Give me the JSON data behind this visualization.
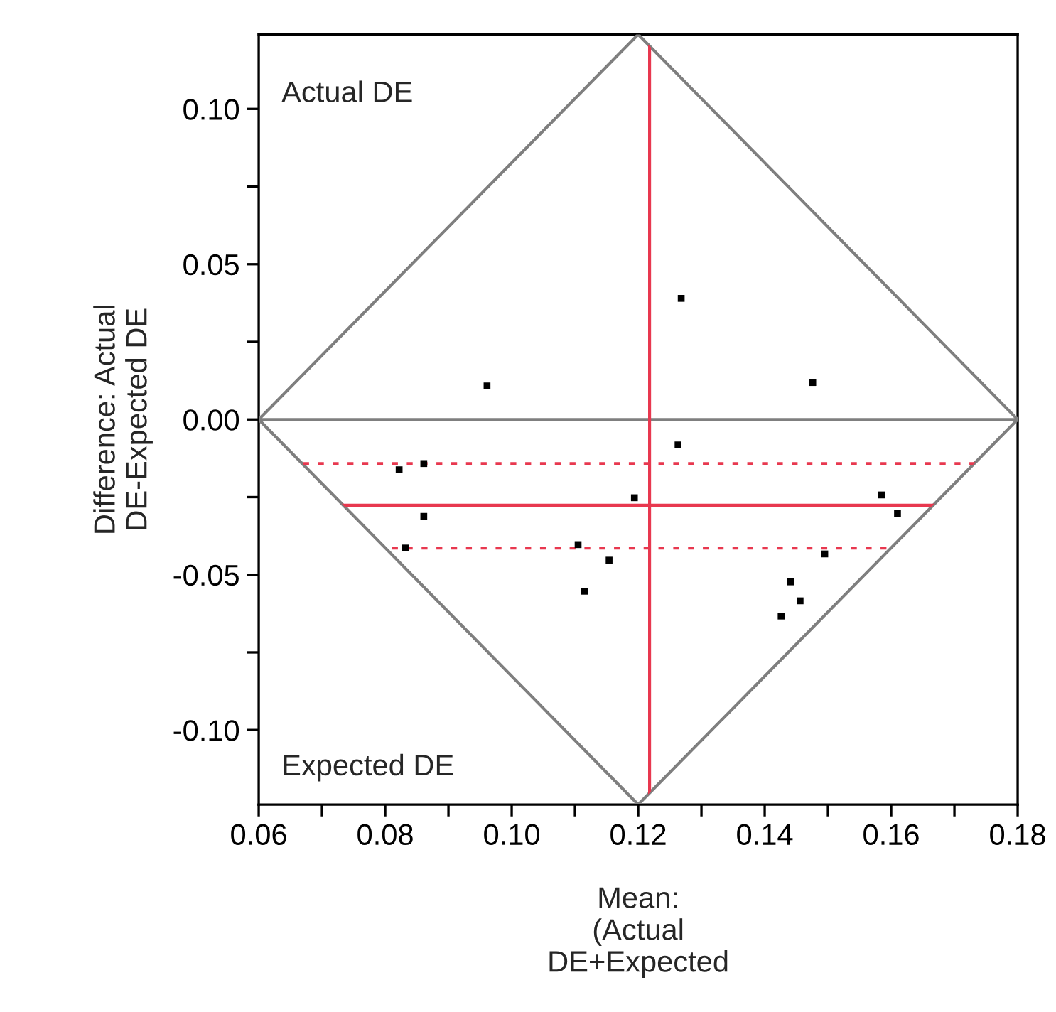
{
  "chart_data": {
    "type": "scatter",
    "xlabel": "Mean:\n(Actual\nDE+Expected",
    "ylabel": "Difference: Actual\nDE-Expected DE",
    "xlim": [
      0.06,
      0.18
    ],
    "ylim": [
      -0.124,
      0.124
    ],
    "xticks": [
      {
        "value": 0.06,
        "label": "0.06"
      },
      {
        "value": 0.07,
        "label": null
      },
      {
        "value": 0.08,
        "label": "0.08"
      },
      {
        "value": 0.09,
        "label": null
      },
      {
        "value": 0.1,
        "label": "0.10"
      },
      {
        "value": 0.11,
        "label": null
      },
      {
        "value": 0.12,
        "label": "0.12"
      },
      {
        "value": 0.13,
        "label": null
      },
      {
        "value": 0.14,
        "label": "0.14"
      },
      {
        "value": 0.15,
        "label": null
      },
      {
        "value": 0.16,
        "label": "0.16"
      },
      {
        "value": 0.17,
        "label": null
      },
      {
        "value": 0.18,
        "label": "0.18"
      }
    ],
    "yticks": [
      {
        "value": -0.1,
        "label": "-0.10"
      },
      {
        "value": -0.075,
        "label": null
      },
      {
        "value": -0.05,
        "label": "-0.05"
      },
      {
        "value": -0.025,
        "label": null
      },
      {
        "value": 0,
        "label": "0.00"
      },
      {
        "value": 0.025,
        "label": null
      },
      {
        "value": 0.05,
        "label": "0.05"
      },
      {
        "value": 0.075,
        "label": null
      },
      {
        "value": 0.1,
        "label": "0.10"
      }
    ],
    "grid": false,
    "legend": false,
    "series": [
      {
        "color": "#000000",
        "marker": "square",
        "x": [
          0.1268,
          0.0961,
          0.1476,
          0.1263,
          0.0822,
          0.0861,
          0.1194,
          0.1585,
          0.161,
          0.0861,
          0.0832,
          0.1105,
          0.1154,
          0.1495,
          0.1115,
          0.1441,
          0.1456,
          0.1426
        ],
        "values": [
          0.039,
          0.0108,
          0.0119,
          -0.0082,
          -0.0162,
          -0.0142,
          -0.0252,
          -0.0243,
          -0.0303,
          -0.0312,
          -0.0414,
          -0.0403,
          -0.0453,
          -0.0433,
          -0.0553,
          -0.0523,
          -0.0584,
          -0.0633
        ]
      },
      {
        "type": "line",
        "color": "#7f7f7f",
        "marker": "none",
        "line_style": "solid",
        "x": [
          0.06,
          0.12,
          0.18
        ],
        "values": [
          0,
          0.124,
          0
        ]
      },
      {
        "type": "line",
        "color": "#7f7f7f",
        "marker": "none",
        "line_style": "solid",
        "x": [
          0.06,
          0.12,
          0.18
        ],
        "values": [
          0,
          -0.124,
          0
        ]
      }
    ],
    "ref_lines": [
      {
        "axis": "y",
        "value": 0,
        "color": "#7f7f7f",
        "line_style": "solid"
      },
      {
        "axis": "x",
        "value": 0.1218,
        "color": "#e8384f",
        "line_style": "solid"
      },
      {
        "axis": "y",
        "value": -0.0276,
        "color": "#e8384f",
        "line_style": "solid"
      },
      {
        "axis": "y",
        "value": -0.0142,
        "color": "#e8384f",
        "line_style": "dotted"
      },
      {
        "axis": "y",
        "value": -0.0414,
        "color": "#e8384f",
        "line_style": "dotted"
      }
    ],
    "annotations": [
      "Actual DE",
      "Expected DE"
    ]
  }
}
